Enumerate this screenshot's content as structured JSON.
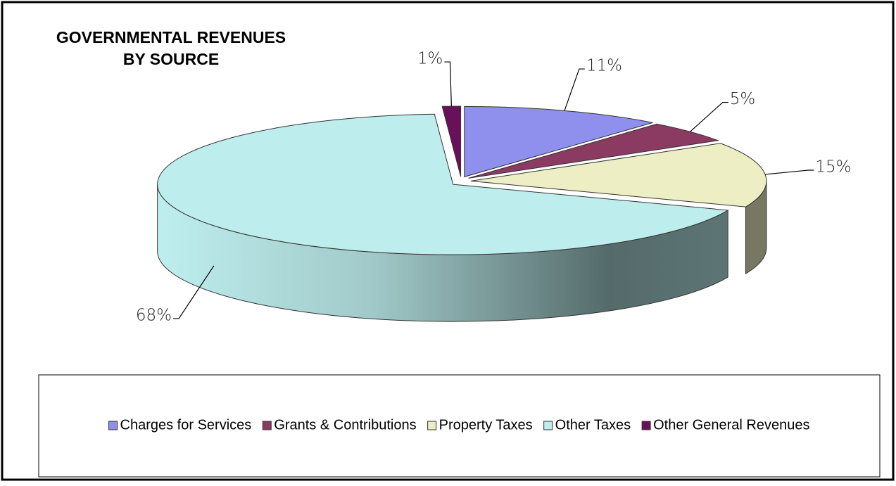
{
  "chart_data": {
    "type": "pie3d",
    "title": [
      "GOVERNMENTAL REVENUES",
      "BY SOURCE"
    ],
    "categories": [
      "Charges for Services",
      "Grants & Contributions",
      "Property Taxes",
      "Other Taxes",
      "Other General Revenues"
    ],
    "values": [
      11,
      5,
      15,
      68,
      1
    ],
    "value_labels": [
      "11%",
      "5%",
      "15%",
      "68%",
      "1%"
    ],
    "colors": [
      "#8f8fee",
      "#8b3a62",
      "#eeeec4",
      "#bdeded",
      "#6a0f5a"
    ],
    "legend": "bottom"
  }
}
